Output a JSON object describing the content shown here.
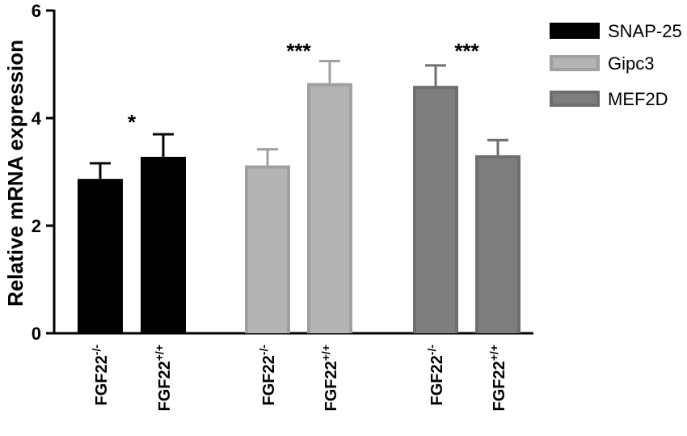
{
  "chart_data": {
    "type": "bar",
    "ylabel": "Relative mRNA expression",
    "ylim": [
      0,
      6
    ],
    "yticks": [
      "0",
      "2",
      "4",
      "6"
    ],
    "legend_position": "top-right",
    "groups": [
      {
        "series": "SNAP-25",
        "color": "#000000",
        "bars": [
          {
            "category": "FGF22",
            "genotype": "-/-",
            "value": 2.87,
            "error": 0.29
          },
          {
            "category": "FGF22",
            "genotype": "+/+",
            "value": 3.28,
            "error": 0.42
          }
        ],
        "significance": "*"
      },
      {
        "series": "Gipc3",
        "color": "#a0a0a0",
        "bars": [
          {
            "category": "FGF22",
            "genotype": "-/-",
            "value": 3.12,
            "error": 0.3
          },
          {
            "category": "FGF22",
            "genotype": "+/+",
            "value": 4.65,
            "error": 0.41
          }
        ],
        "significance": "***"
      },
      {
        "series": "MEF2D",
        "color": "#6e6e6e",
        "bars": [
          {
            "category": "FGF22",
            "genotype": "-/-",
            "value": 4.6,
            "error": 0.38
          },
          {
            "category": "FGF22",
            "genotype": "+/+",
            "value": 3.31,
            "error": 0.28
          }
        ],
        "significance": "***"
      }
    ],
    "legend": [
      {
        "label": "SNAP-25",
        "color": "#000000",
        "inner": "#000000"
      },
      {
        "label": "Gipc3",
        "color": "#a0a0a0",
        "inner": "#b4b4b4"
      },
      {
        "label": "MEF2D",
        "color": "#6e6e6e",
        "inner": "#7e7e7e"
      }
    ]
  }
}
